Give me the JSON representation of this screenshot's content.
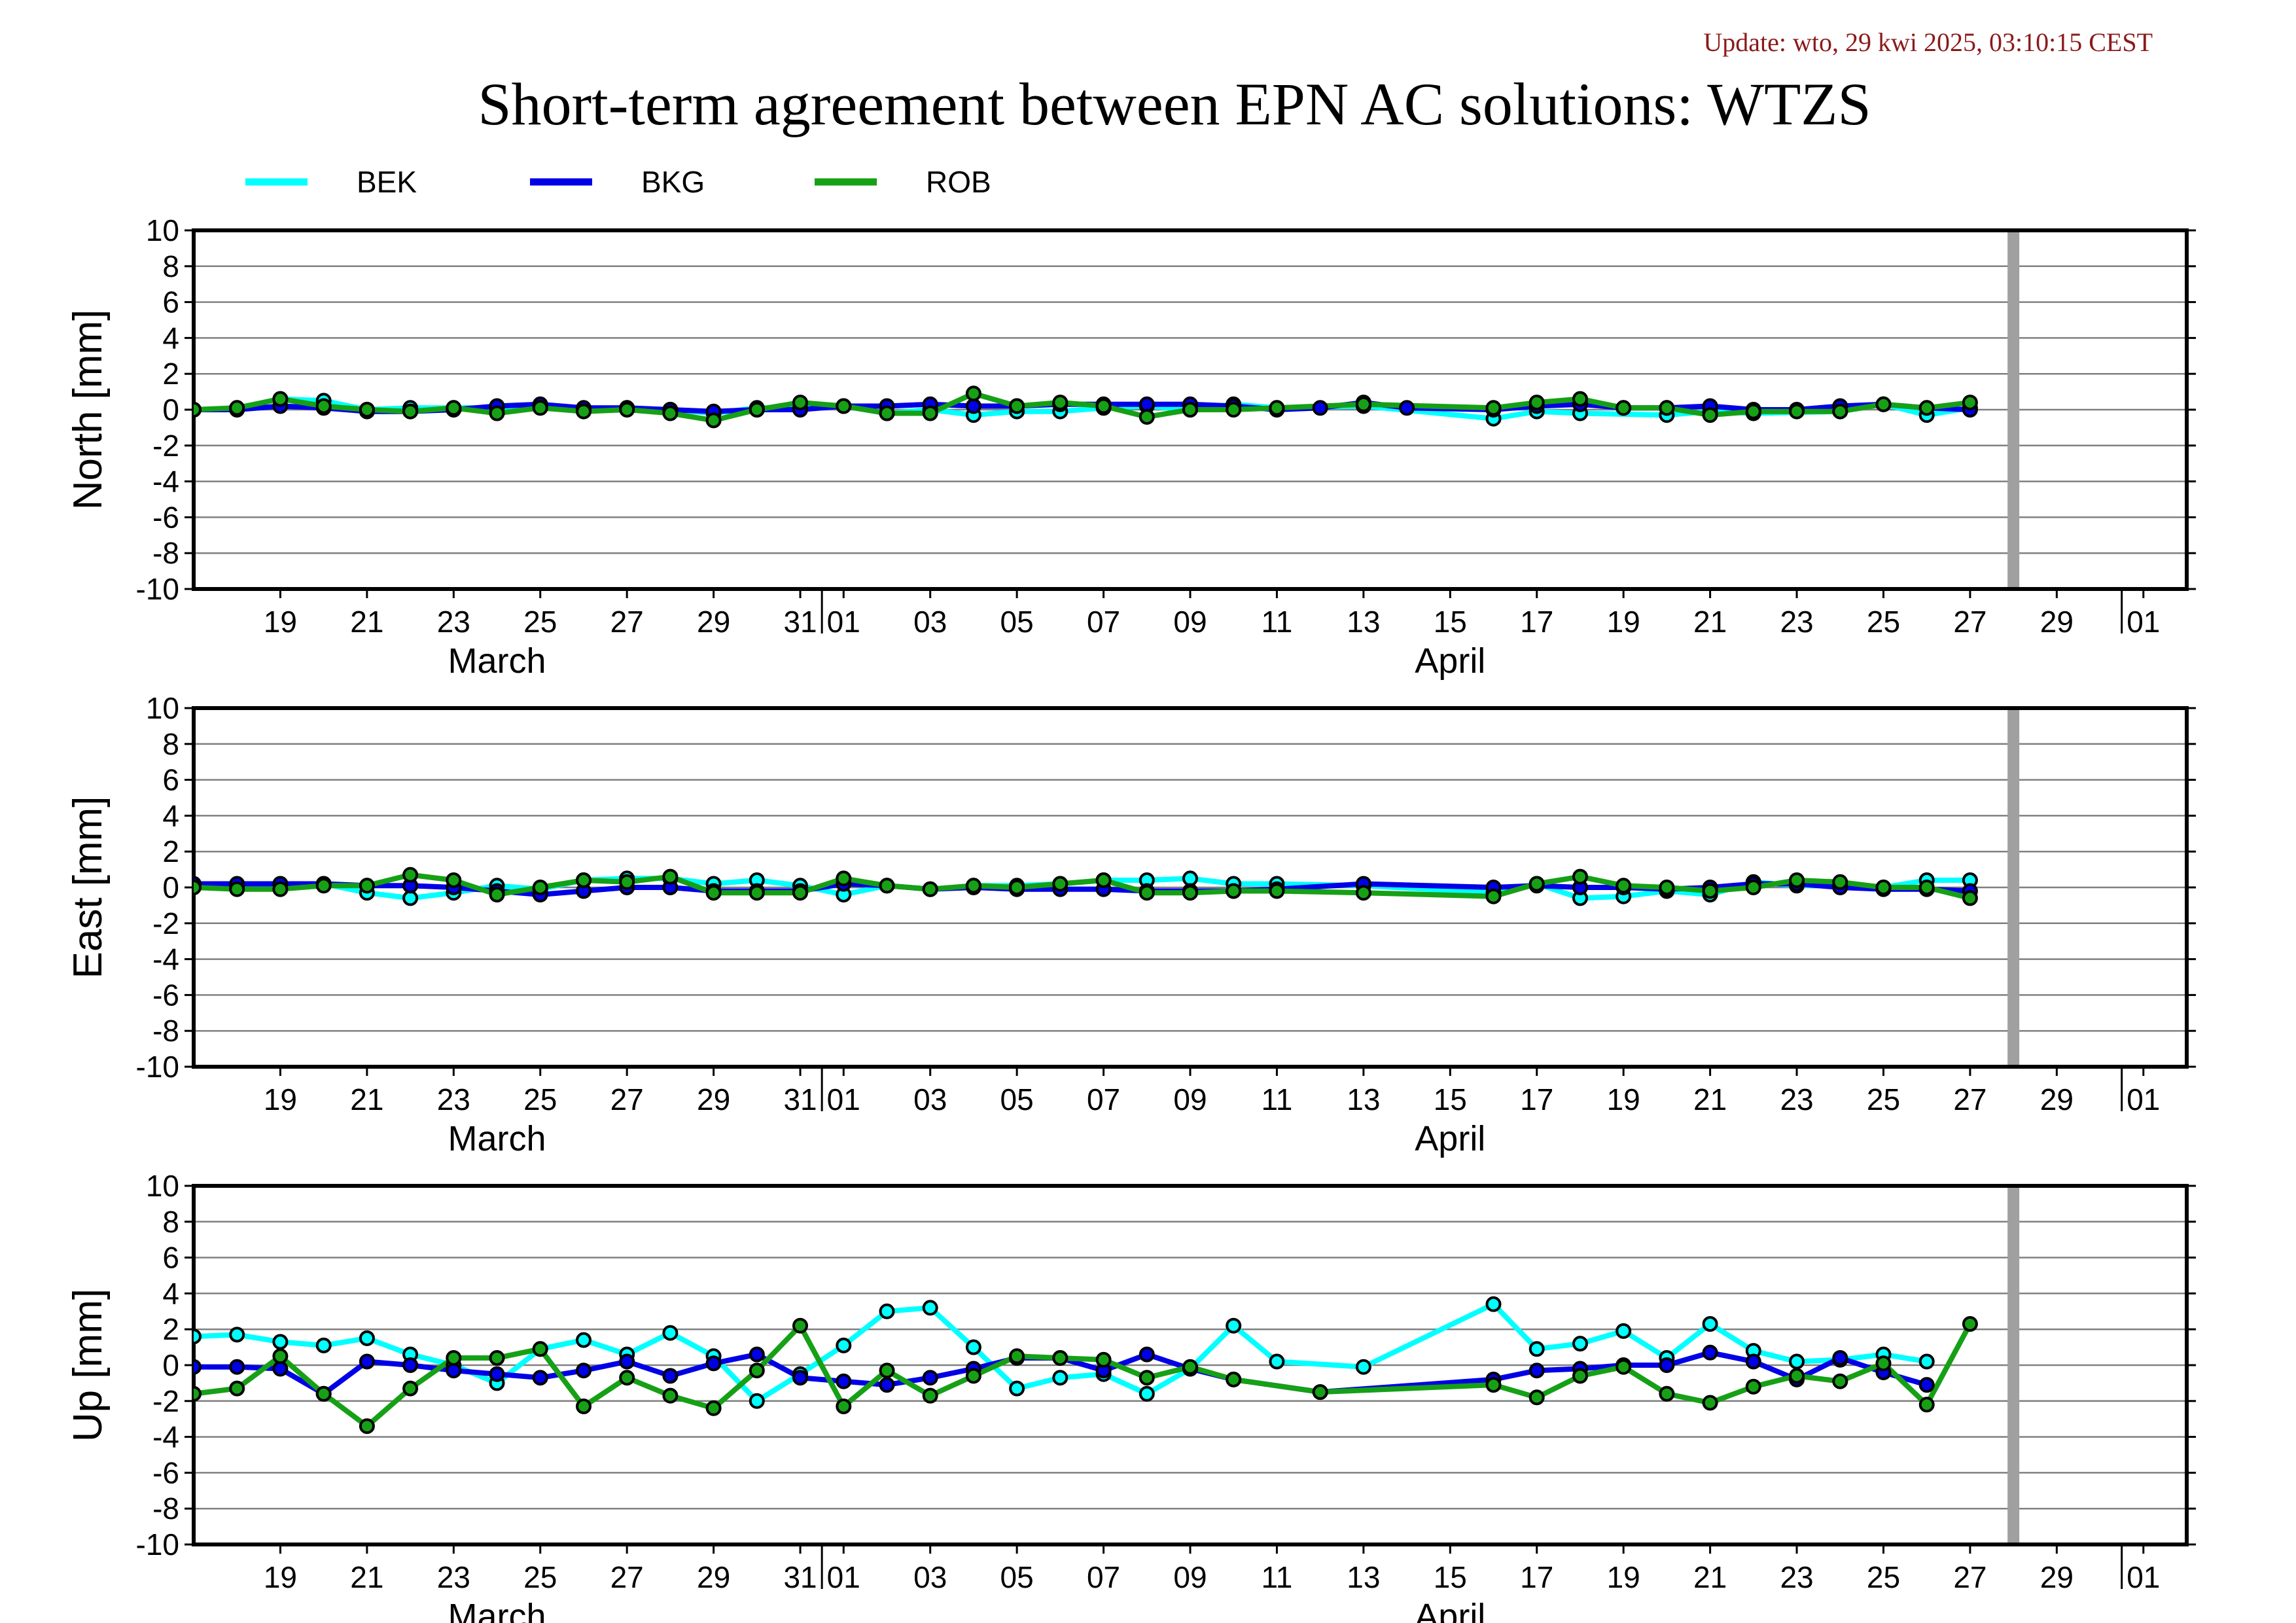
{
  "header": {
    "update": "Update: wto, 29 kwi 2025, 03:10:15 CEST",
    "title": "Short-term agreement between EPN AC solutions: WTZS"
  },
  "legend": [
    {
      "name": "BEK",
      "color": "#00ffff"
    },
    {
      "name": "BKG",
      "color": "#0000e6"
    },
    {
      "name": "ROB",
      "color": "#16a016"
    }
  ],
  "colors": {
    "marker_stroke": "#000000",
    "grid": "#808080",
    "frame": "#000000",
    "current_day_bar": "#a0a0a0"
  },
  "chart_data": [
    {
      "type": "line",
      "ylabel": "North [mm]",
      "ylim": [
        -10,
        10
      ],
      "yticks": [
        10,
        8,
        6,
        4,
        2,
        0,
        -2,
        -4,
        -6,
        -8,
        -10
      ],
      "xlim": [
        "2025-03-17",
        "2025-05-02"
      ],
      "xticks": [
        "19",
        "21",
        "23",
        "25",
        "27",
        "29",
        "31",
        "01",
        "03",
        "05",
        "07",
        "09",
        "11",
        "13",
        "15",
        "17",
        "19",
        "21",
        "23",
        "25",
        "27",
        "29",
        "01"
      ],
      "months": [
        "March",
        "April"
      ],
      "grid": true,
      "current_day": "2025-04-28",
      "x": [
        "2025-03-17",
        "2025-03-18",
        "2025-03-19",
        "2025-03-20",
        "2025-03-21",
        "2025-03-22",
        "2025-03-23",
        "2025-03-24",
        "2025-03-25",
        "2025-03-26",
        "2025-03-27",
        "2025-03-28",
        "2025-03-29",
        "2025-03-30",
        "2025-03-31",
        "2025-04-01",
        "2025-04-02",
        "2025-04-03",
        "2025-04-04",
        "2025-04-05",
        "2025-04-06",
        "2025-04-07",
        "2025-04-08",
        "2025-04-09",
        "2025-04-10",
        "2025-04-11",
        "2025-04-12",
        "2025-04-13",
        "2025-04-14",
        "2025-04-15",
        "2025-04-16",
        "2025-04-17",
        "2025-04-18",
        "2025-04-19",
        "2025-04-20",
        "2025-04-21",
        "2025-04-22",
        "2025-04-23",
        "2025-04-24",
        "2025-04-25",
        "2025-04-26",
        "2025-04-27"
      ],
      "series": [
        {
          "name": "BEK",
          "values": [
            0.0,
            0.1,
            0.6,
            0.5,
            0.0,
            0.1,
            0.1,
            0.1,
            0.2,
            0.0,
            0.1,
            0.0,
            -0.2,
            0.1,
            0.1,
            0.2,
            -0.2,
            0.0,
            -0.3,
            -0.1,
            -0.1,
            0.1,
            0.2,
            0.0,
            0.3,
            0.1,
            null,
            0.2,
            null,
            null,
            -0.5,
            -0.1,
            -0.2,
            null,
            -0.3,
            -0.1,
            -0.2,
            null,
            -0.1,
            0.3,
            -0.3,
            0.1
          ]
        },
        {
          "name": "BKG",
          "values": [
            0.0,
            0.0,
            0.2,
            0.1,
            -0.1,
            -0.1,
            0.0,
            0.2,
            0.3,
            0.1,
            0.1,
            0.0,
            -0.1,
            0.0,
            0.0,
            0.2,
            0.2,
            0.3,
            0.2,
            0.2,
            0.3,
            0.3,
            0.3,
            0.3,
            0.2,
            0.0,
            0.1,
            0.4,
            0.1,
            null,
            0.0,
            0.2,
            0.3,
            0.1,
            0.1,
            0.2,
            0.0,
            0.0,
            0.2,
            0.3,
            0.1,
            0.0
          ]
        },
        {
          "name": "ROB",
          "values": [
            0.0,
            0.1,
            0.6,
            0.2,
            0.0,
            -0.1,
            0.1,
            -0.2,
            0.1,
            -0.1,
            0.0,
            -0.2,
            -0.6,
            0.0,
            0.4,
            0.2,
            -0.2,
            -0.2,
            0.9,
            0.2,
            0.4,
            0.2,
            -0.4,
            0.0,
            0.0,
            0.1,
            null,
            0.3,
            null,
            null,
            0.1,
            0.4,
            0.6,
            0.1,
            0.1,
            -0.3,
            -0.1,
            -0.1,
            -0.1,
            0.3,
            0.1,
            0.4
          ]
        }
      ]
    },
    {
      "type": "line",
      "ylabel": "East [mm]",
      "ylim": [
        -10,
        10
      ],
      "yticks": [
        10,
        8,
        6,
        4,
        2,
        0,
        -2,
        -4,
        -6,
        -8,
        -10
      ],
      "xlim": [
        "2025-03-17",
        "2025-05-02"
      ],
      "xticks": [
        "19",
        "21",
        "23",
        "25",
        "27",
        "29",
        "31",
        "01",
        "03",
        "05",
        "07",
        "09",
        "11",
        "13",
        "15",
        "17",
        "19",
        "21",
        "23",
        "25",
        "27",
        "29",
        "01"
      ],
      "months": [
        "March",
        "April"
      ],
      "grid": true,
      "current_day": "2025-04-28",
      "x": [
        "2025-03-17",
        "2025-03-18",
        "2025-03-19",
        "2025-03-20",
        "2025-03-21",
        "2025-03-22",
        "2025-03-23",
        "2025-03-24",
        "2025-03-25",
        "2025-03-26",
        "2025-03-27",
        "2025-03-28",
        "2025-03-29",
        "2025-03-30",
        "2025-03-31",
        "2025-04-01",
        "2025-04-02",
        "2025-04-03",
        "2025-04-04",
        "2025-04-05",
        "2025-04-06",
        "2025-04-07",
        "2025-04-08",
        "2025-04-09",
        "2025-04-10",
        "2025-04-11",
        "2025-04-12",
        "2025-04-13",
        "2025-04-14",
        "2025-04-15",
        "2025-04-16",
        "2025-04-17",
        "2025-04-18",
        "2025-04-19",
        "2025-04-20",
        "2025-04-21",
        "2025-04-22",
        "2025-04-23",
        "2025-04-24",
        "2025-04-25",
        "2025-04-26",
        "2025-04-27"
      ],
      "series": [
        {
          "name": "BEK",
          "values": [
            0.1,
            0.1,
            0.2,
            0.2,
            -0.3,
            -0.6,
            -0.3,
            0.1,
            -0.1,
            0.4,
            0.5,
            0.5,
            0.2,
            0.4,
            0.1,
            -0.4,
            0.1,
            -0.1,
            0.1,
            0.1,
            0.2,
            0.4,
            0.4,
            0.5,
            0.2,
            0.2,
            null,
            0.1,
            null,
            null,
            -0.3,
            0.2,
            -0.6,
            -0.5,
            -0.2,
            -0.4,
            0.3,
            0.1,
            0.1,
            0.0,
            0.4,
            0.4
          ]
        },
        {
          "name": "BKG",
          "values": [
            0.2,
            0.2,
            0.2,
            0.2,
            0.1,
            0.1,
            0.0,
            -0.2,
            -0.4,
            -0.2,
            0.0,
            0.0,
            -0.2,
            -0.2,
            -0.2,
            0.2,
            0.1,
            -0.1,
            0.0,
            -0.1,
            -0.1,
            -0.1,
            -0.2,
            -0.2,
            -0.2,
            -0.1,
            null,
            0.2,
            null,
            null,
            0.0,
            0.1,
            0.0,
            0.0,
            -0.1,
            0.0,
            0.2,
            0.2,
            0.0,
            -0.1,
            -0.1,
            -0.2
          ]
        },
        {
          "name": "ROB",
          "values": [
            0.0,
            -0.1,
            -0.1,
            0.1,
            0.1,
            0.7,
            0.4,
            -0.4,
            0.0,
            0.4,
            0.3,
            0.6,
            -0.3,
            -0.3,
            -0.3,
            0.5,
            0.1,
            -0.1,
            0.1,
            0.0,
            0.2,
            0.4,
            -0.3,
            -0.3,
            -0.2,
            -0.2,
            null,
            -0.3,
            null,
            null,
            -0.5,
            0.2,
            0.6,
            0.1,
            0.0,
            -0.2,
            0.0,
            0.4,
            0.3,
            0.0,
            0.0,
            -0.6
          ]
        }
      ]
    },
    {
      "type": "line",
      "ylabel": "Up [mm]",
      "ylim": [
        -10,
        10
      ],
      "yticks": [
        10,
        8,
        6,
        4,
        2,
        0,
        -2,
        -4,
        -6,
        -8,
        -10
      ],
      "xlim": [
        "2025-03-17",
        "2025-05-02"
      ],
      "xticks": [
        "19",
        "21",
        "23",
        "25",
        "27",
        "29",
        "31",
        "01",
        "03",
        "05",
        "07",
        "09",
        "11",
        "13",
        "15",
        "17",
        "19",
        "21",
        "23",
        "25",
        "27",
        "29",
        "01"
      ],
      "months": [
        "March",
        "April"
      ],
      "grid": true,
      "current_day": "2025-04-28",
      "x": [
        "2025-03-17",
        "2025-03-18",
        "2025-03-19",
        "2025-03-20",
        "2025-03-21",
        "2025-03-22",
        "2025-03-23",
        "2025-03-24",
        "2025-03-25",
        "2025-03-26",
        "2025-03-27",
        "2025-03-28",
        "2025-03-29",
        "2025-03-30",
        "2025-03-31",
        "2025-04-01",
        "2025-04-02",
        "2025-04-03",
        "2025-04-04",
        "2025-04-05",
        "2025-04-06",
        "2025-04-07",
        "2025-04-08",
        "2025-04-09",
        "2025-04-10",
        "2025-04-11",
        "2025-04-12",
        "2025-04-13",
        "2025-04-14",
        "2025-04-15",
        "2025-04-16",
        "2025-04-17",
        "2025-04-18",
        "2025-04-19",
        "2025-04-20",
        "2025-04-21",
        "2025-04-22",
        "2025-04-23",
        "2025-04-24",
        "2025-04-25",
        "2025-04-26",
        "2025-04-27"
      ],
      "series": [
        {
          "name": "BEK",
          "values": [
            1.6,
            1.7,
            1.3,
            1.1,
            1.5,
            0.6,
            0.0,
            -1.0,
            0.9,
            1.4,
            0.6,
            1.8,
            0.5,
            -2.0,
            -0.5,
            1.1,
            3.0,
            3.2,
            1.0,
            -1.3,
            -0.7,
            -0.5,
            -1.6,
            -0.2,
            2.2,
            0.2,
            null,
            -0.1,
            null,
            null,
            3.4,
            0.9,
            1.2,
            1.9,
            0.4,
            2.3,
            0.8,
            0.2,
            0.3,
            0.6,
            0.2,
            null
          ]
        },
        {
          "name": "BKG",
          "values": [
            -0.1,
            -0.1,
            -0.2,
            -1.6,
            0.2,
            0.0,
            -0.3,
            -0.5,
            -0.7,
            -0.3,
            0.2,
            -0.6,
            0.1,
            0.6,
            -0.7,
            -0.9,
            -1.1,
            -0.7,
            -0.2,
            0.4,
            0.4,
            -0.3,
            0.6,
            -0.2,
            -0.8,
            null,
            -1.5,
            null,
            null,
            null,
            -0.8,
            -0.3,
            -0.2,
            0.0,
            0.0,
            0.7,
            0.2,
            -0.8,
            0.4,
            -0.4,
            -1.1,
            null
          ]
        },
        {
          "name": "ROB",
          "values": [
            -1.6,
            -1.3,
            0.5,
            -1.6,
            -3.4,
            -1.3,
            0.4,
            0.4,
            0.9,
            -2.3,
            -0.7,
            -1.7,
            -2.4,
            -0.3,
            2.2,
            -2.3,
            -0.3,
            -1.7,
            -0.6,
            0.5,
            0.4,
            0.3,
            -0.7,
            -0.1,
            -0.8,
            null,
            -1.5,
            null,
            null,
            null,
            -1.1,
            -1.8,
            -0.6,
            -0.1,
            -1.6,
            -2.1,
            -1.2,
            -0.6,
            -0.9,
            0.1,
            -2.2,
            2.3
          ]
        }
      ]
    }
  ]
}
